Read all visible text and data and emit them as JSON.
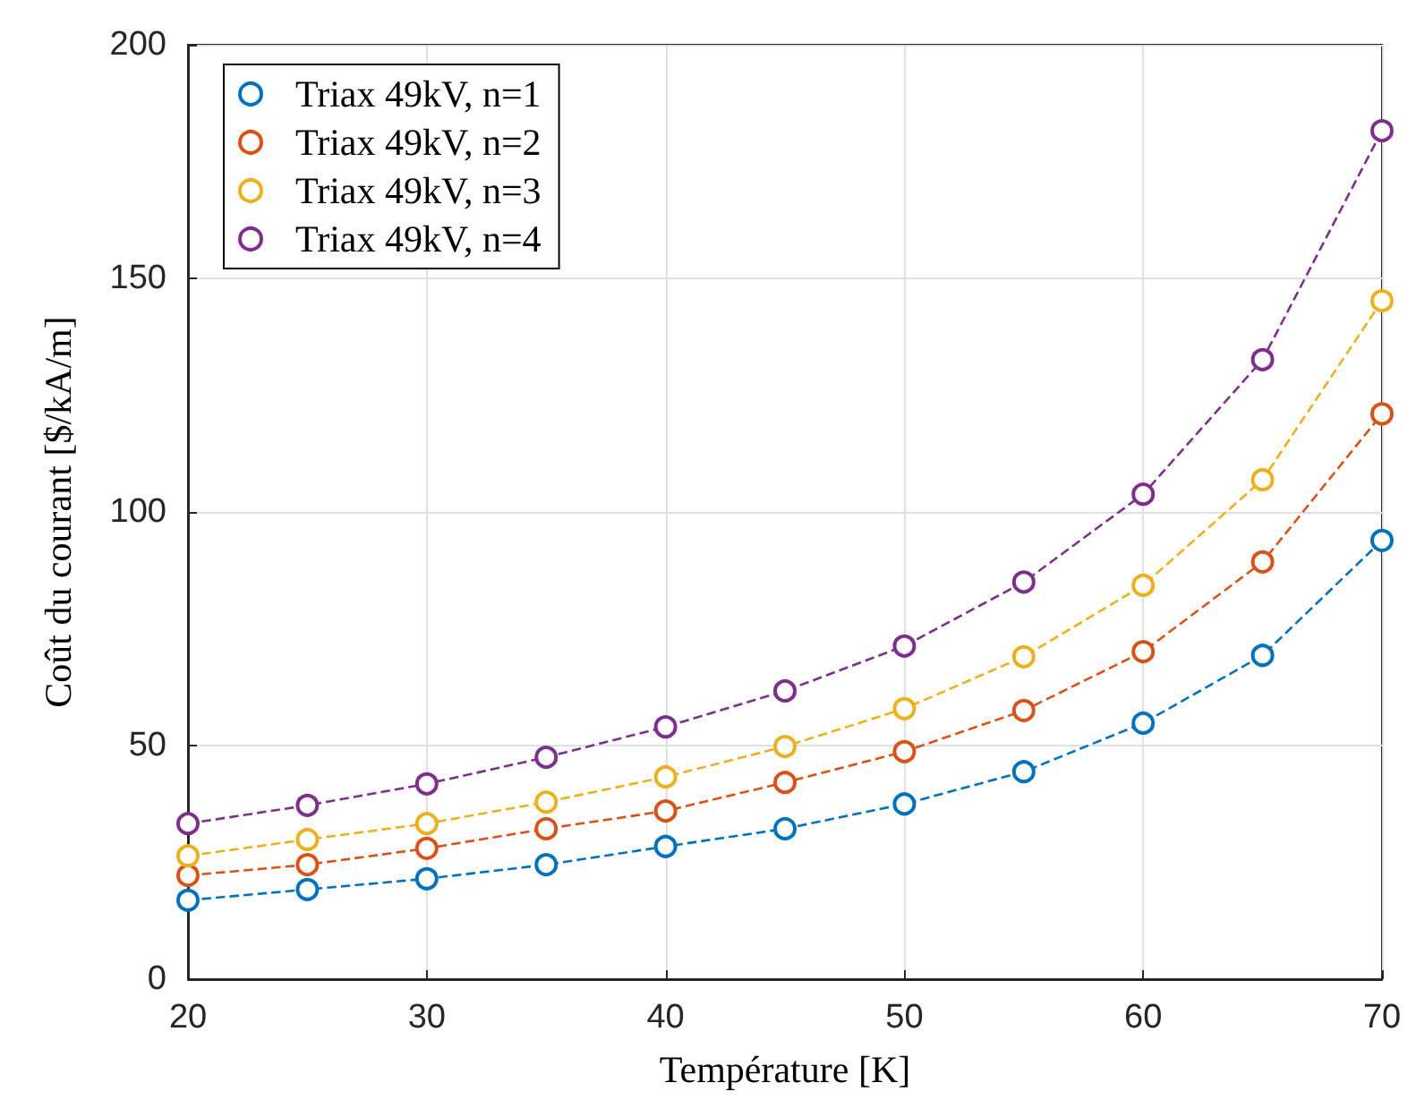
{
  "chart_data": {
    "type": "line",
    "xlabel": "Température [K]",
    "ylabel": "Coût du courant [$/kA/m]",
    "x": [
      20,
      25,
      30,
      35,
      40,
      45,
      50,
      55,
      60,
      65,
      70
    ],
    "series": [
      {
        "name": "Triax 49kV, n=1",
        "color": "#0072bd",
        "values": [
          16.9,
          19.2,
          21.5,
          24.5,
          28.4,
          32.2,
          37.5,
          44.4,
          54.8,
          69.3,
          93.9
        ]
      },
      {
        "name": "Triax 49kV, n=2",
        "color": "#d95319",
        "values": [
          22.2,
          24.5,
          28,
          32.2,
          36,
          42.1,
          48.7,
          57.5,
          70.1,
          89.3,
          121
        ]
      },
      {
        "name": "Triax 49kV, n=3",
        "color": "#edb120",
        "values": [
          26.4,
          29.9,
          33.3,
          37.9,
          43.3,
          49.8,
          57.9,
          69,
          84.3,
          106.9,
          145.2
        ]
      },
      {
        "name": "Triax 49kV, n=4",
        "color": "#7e2f8e",
        "values": [
          33.3,
          37.2,
          41.8,
          47.5,
          54,
          61.7,
          71.3,
          85,
          103.8,
          132.6,
          181.6
        ]
      }
    ],
    "xlim": [
      20,
      70
    ],
    "xticks": [
      20,
      30,
      40,
      50,
      60,
      70
    ],
    "ylim": [
      0,
      200
    ],
    "yticks": [
      0,
      50,
      100,
      150,
      200
    ],
    "grid": true,
    "legend": "top left",
    "marker": "circle",
    "line_style": "dashed"
  }
}
